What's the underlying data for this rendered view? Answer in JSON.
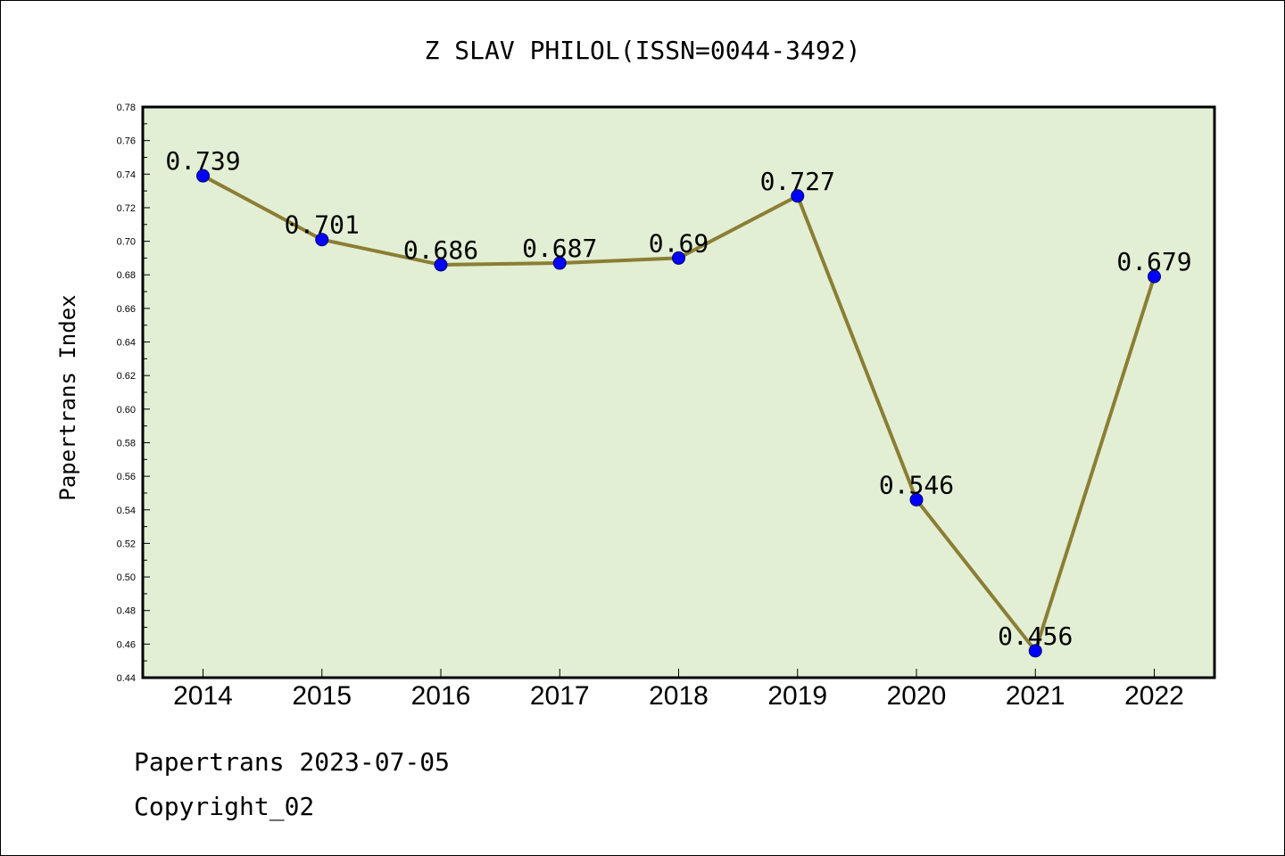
{
  "chart_data": {
    "type": "line",
    "title": "Z SLAV PHILOL(ISSN=0044-3492)",
    "xlabel": "",
    "ylabel": "Papertrans Index",
    "categories": [
      "2014",
      "2015",
      "2016",
      "2017",
      "2018",
      "2019",
      "2020",
      "2021",
      "2022"
    ],
    "series": [
      {
        "values": [
          0.739,
          0.701,
          0.686,
          0.687,
          0.69,
          0.727,
          0.546,
          0.456,
          0.679
        ],
        "labels": [
          "0.739",
          "0.701",
          "0.686",
          "0.687",
          "0.69",
          "0.727",
          "0.546",
          "0.456",
          "0.679"
        ]
      }
    ],
    "ylim": [
      0.44,
      0.78
    ],
    "yticks": [
      "0.44",
      "0.46",
      "0.48",
      "0.50",
      "0.52",
      "0.54",
      "0.56",
      "0.58",
      "0.60",
      "0.62",
      "0.64",
      "0.66",
      "0.68",
      "0.70",
      "0.72",
      "0.74",
      "0.76",
      "0.78"
    ],
    "grid": false,
    "colors": {
      "plot_background": "#e2efd5",
      "line": "#8b7e34",
      "marker": "#0000ff",
      "marker_edge": "#000066",
      "axes": "#000000"
    }
  },
  "footer": {
    "line1": "Papertrans 2023-07-05",
    "line2": "Copyright_02"
  }
}
